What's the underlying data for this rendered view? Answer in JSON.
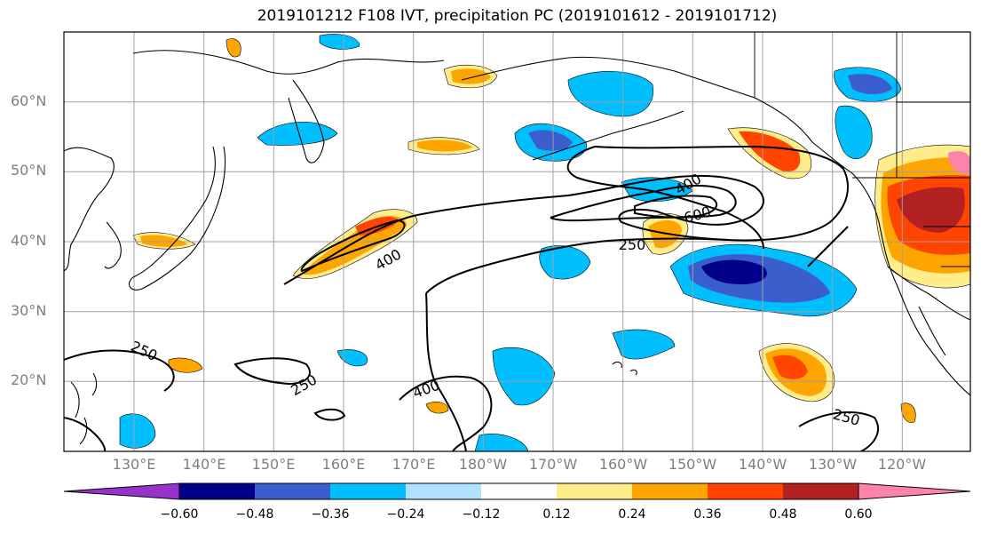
{
  "title": "2019101212 F108 IVT, precipitation PC (2019101612 - 2019101712)",
  "lat_labels": [
    "60°N",
    "50°N",
    "40°N",
    "30°N",
    "20°N"
  ],
  "lon_labels": [
    "130°E",
    "140°E",
    "150°E",
    "160°E",
    "170°E",
    "180°W",
    "170°W",
    "160°W",
    "150°W",
    "140°W",
    "130°W",
    "120°W"
  ],
  "ivt_contour_labels": [
    "400",
    "600",
    "250",
    "400",
    "250",
    "250",
    "400",
    "250"
  ],
  "colorbar": {
    "ticks": [
      "−0.60",
      "−0.48",
      "−0.36",
      "−0.24",
      "−0.12",
      "0.12",
      "0.24",
      "0.36",
      "0.48",
      "0.60"
    ],
    "colors": [
      "#9932cc",
      "#00008b",
      "#3a5fcd",
      "#00bfff",
      "#b0e2ff",
      "#ffffff",
      "#ffec8b",
      "#ffa500",
      "#ff4500",
      "#b22222",
      "#ff82ab"
    ]
  }
}
